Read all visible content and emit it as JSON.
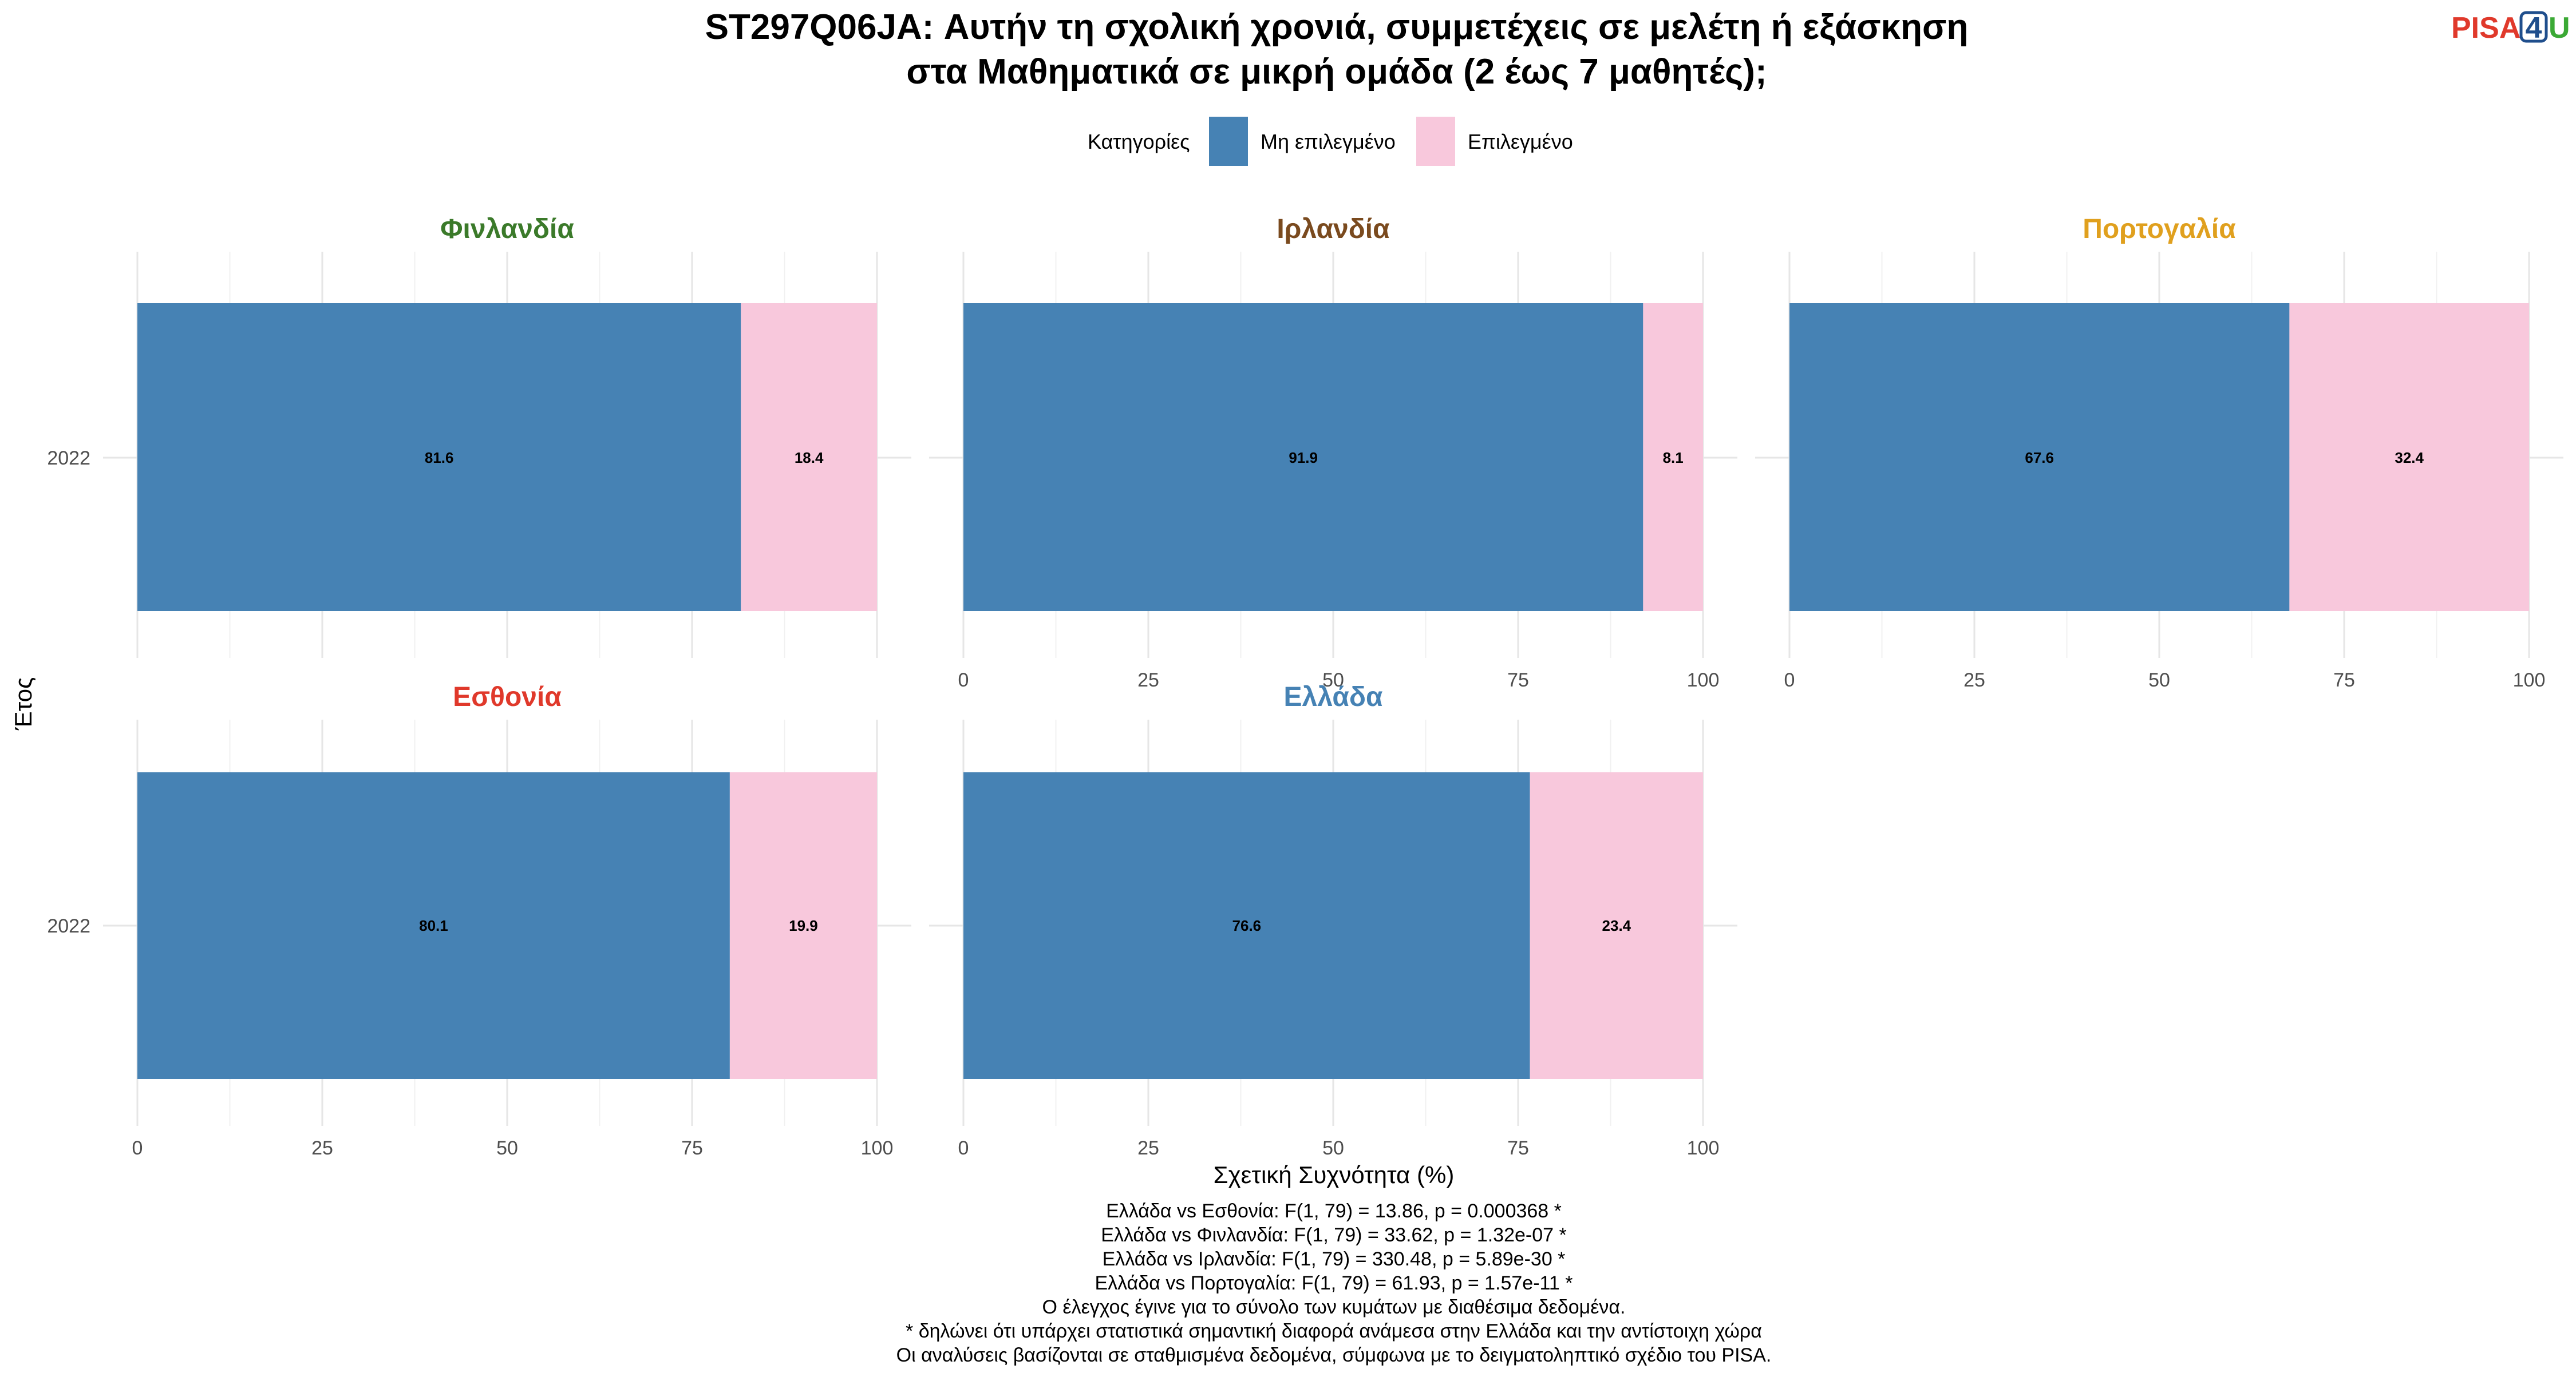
{
  "chart_data": {
    "type": "bar",
    "orientation": "horizontal",
    "stacked": true,
    "title_lines": [
      "ST297Q06JA: Αυτήν τη σχολική χρονιά, συμμετέχεις σε μελέτη ή εξάσκηση",
      "στα Μαθηματικά σε μικρή ομάδα (2 έως 7 μαθητές);"
    ],
    "legend": {
      "title": "Κατηγορίες",
      "position": "top",
      "entries": [
        {
          "label": "Μη επιλεγμένο",
          "color": "#4682B4"
        },
        {
          "label": "Επιλεγμένο",
          "color": "#F8C8DC"
        }
      ]
    },
    "xlabel": "Σχετική Συχνότητα (%)",
    "ylabel": "Έτος",
    "xlim": [
      0,
      100
    ],
    "x_ticks": [
      "0",
      "25",
      "50",
      "75",
      "100"
    ],
    "grid": true,
    "facets": [
      {
        "name": "Φινλανδία",
        "color": "#3B7A2A",
        "year": "2022",
        "values": [
          81.6,
          18.4
        ],
        "labels": [
          "81.6",
          "18.4"
        ]
      },
      {
        "name": "Ιρλανδία",
        "color": "#7A4A1E",
        "year": "2022",
        "values": [
          91.9,
          8.1
        ],
        "labels": [
          "91.9",
          "8.1"
        ]
      },
      {
        "name": "Πορτογαλία",
        "color": "#E0A01E",
        "year": "2022",
        "values": [
          67.6,
          32.4
        ],
        "labels": [
          "67.6",
          "32.4"
        ]
      },
      {
        "name": "Εσθονία",
        "color": "#E0392B",
        "year": "2022",
        "values": [
          80.1,
          19.9
        ],
        "labels": [
          "80.1",
          "19.9"
        ]
      },
      {
        "name": "Ελλάδα",
        "color": "#4682B4",
        "year": "2022",
        "values": [
          76.6,
          23.4
        ],
        "labels": [
          "76.6",
          "23.4"
        ]
      }
    ],
    "caption_lines": [
      "Ελλάδα vs Εσθονία: F(1, 79) = 13.86, p = 0.000368 *",
      "Ελλάδα vs Φινλανδία: F(1, 79) = 33.62, p = 1.32e-07 *",
      "Ελλάδα vs Ιρλανδία: F(1, 79) = 330.48, p = 5.89e-30 *",
      "Ελλάδα vs Πορτογαλία: F(1, 79) = 61.93, p = 1.57e-11 *",
      "Ο έλεγχος έγινε για το σύνολο των κυμάτων με διαθέσιμα δεδομένα.",
      "* δηλώνει ότι υπάρχει στατιστικά σημαντική διαφορά ανάμεσα στην Ελλάδα και την αντίστοιχη χώρα",
      "Οι αναλύσεις βασίζονται σε σταθμισμένα δεδομένα, σύμφωνα με το δειγματοληπτικό σχέδιο του PISA."
    ]
  },
  "logo": {
    "part1": "PISA",
    "part2": "4",
    "part3": "U",
    "color1": "#E0392B",
    "color2": "#1F4E8C",
    "color3": "#3BA935"
  }
}
